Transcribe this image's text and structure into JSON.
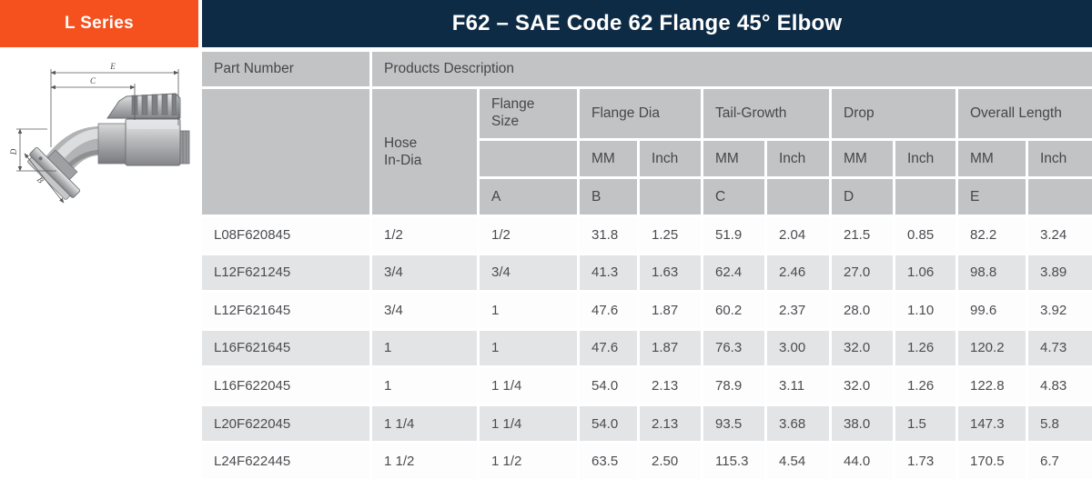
{
  "badge": {
    "label": "L Series"
  },
  "title_bar": {
    "title": "F62 – SAE Code 62 Flange 45° Elbow"
  },
  "colors": {
    "accent_orange": "#F4511E",
    "navy": "#0E2B45",
    "header_gray": "#C2C3C5",
    "row_alt_gray": "#E3E4E6",
    "text_dark": "#4B4C4F"
  },
  "diagram": {
    "description": "45-degree elbow flange fitting technical drawing",
    "dims": [
      "E",
      "C",
      "D",
      "B"
    ]
  },
  "table": {
    "header": {
      "part_number": "Part Number",
      "products_description": "Products Description",
      "hose_line1": "Hose",
      "hose_line2": "In-Dia",
      "flange_line1": "Flange",
      "flange_line2": "Size",
      "groups": [
        {
          "label": "Flange Dia",
          "letter": "B"
        },
        {
          "label": "Tail-Growth",
          "letter": "C"
        },
        {
          "label": "Drop",
          "letter": "D"
        },
        {
          "label": "Overall Length",
          "letter": "E"
        }
      ],
      "units": [
        "MM",
        "Inch",
        "MM",
        "Inch",
        "MM",
        "Inch",
        "MM",
        "Inch"
      ],
      "flange_size_letter": "A"
    },
    "rows": [
      {
        "part": "L08F620845",
        "values": [
          "1/2",
          "1/2",
          "31.8",
          "1.25",
          "51.9",
          "2.04",
          "21.5",
          "0.85",
          "82.2",
          "3.24"
        ]
      },
      {
        "part": "L12F621245",
        "values": [
          "3/4",
          "3/4",
          "41.3",
          "1.63",
          "62.4",
          "2.46",
          "27.0",
          "1.06",
          "98.8",
          "3.89"
        ]
      },
      {
        "part": "L12F621645",
        "values": [
          "3/4",
          "1",
          "47.6",
          "1.87",
          "60.2",
          "2.37",
          "28.0",
          "1.10",
          "99.6",
          "3.92"
        ]
      },
      {
        "part": "L16F621645",
        "values": [
          "1",
          "1",
          "47.6",
          "1.87",
          "76.3",
          "3.00",
          "32.0",
          "1.26",
          "120.2",
          "4.73"
        ]
      },
      {
        "part": "L16F622045",
        "values": [
          "1",
          "1 1/4",
          "54.0",
          "2.13",
          "78.9",
          "3.11",
          "32.0",
          "1.26",
          "122.8",
          "4.83"
        ]
      },
      {
        "part": "L20F622045",
        "values": [
          "1 1/4",
          "1 1/4",
          "54.0",
          "2.13",
          "93.5",
          "3.68",
          "38.0",
          "1.5",
          "147.3",
          "5.8"
        ]
      },
      {
        "part": "L24F622445",
        "values": [
          "1 1/2",
          "1 1/2",
          "63.5",
          "2.50",
          "115.3",
          "4.54",
          "44.0",
          "1.73",
          "170.5",
          "6.7"
        ]
      }
    ]
  }
}
